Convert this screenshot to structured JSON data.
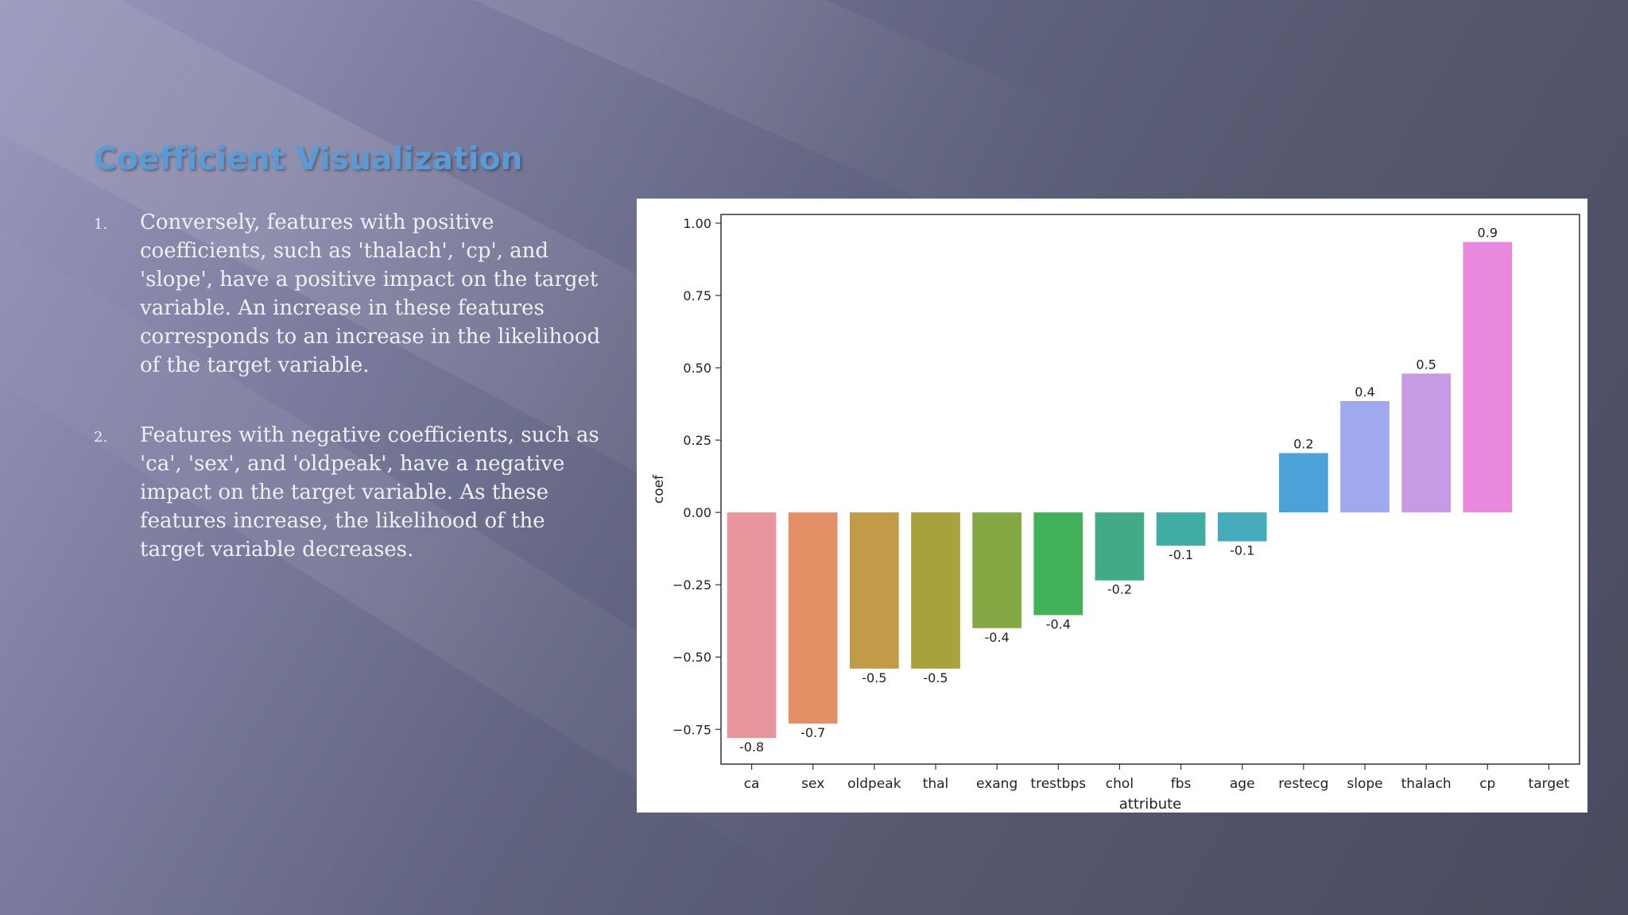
{
  "slide": {
    "title": "Coefficient Visualization",
    "points": [
      {
        "number": "1.",
        "text": "Conversely, features with positive coefficients, such as 'thalach', 'cp', and 'slope', have a positive impact on the target variable. An increase in these features corresponds to an increase in the likelihood of the target variable."
      },
      {
        "number": "2.",
        "text": "Features with negative coefficients, such as 'ca', 'sex', and 'oldpeak', have a negative impact on the target variable. As these features increase, the likelihood of the target variable decreases."
      }
    ]
  },
  "colors": {
    "title": "#5b9bd5",
    "body_text": "#eef0f6"
  },
  "chart_data": {
    "type": "bar",
    "title": "",
    "xlabel": "attribute",
    "ylabel": "coef",
    "categories": [
      "ca",
      "sex",
      "oldpeak",
      "thal",
      "exang",
      "trestbps",
      "chol",
      "fbs",
      "age",
      "restecg",
      "slope",
      "thalach",
      "cp",
      "target"
    ],
    "values": [
      -0.78,
      -0.73,
      -0.54,
      -0.54,
      -0.4,
      -0.355,
      -0.235,
      -0.115,
      -0.1,
      0.205,
      0.385,
      0.48,
      0.935,
      null
    ],
    "data_labels": [
      "-0.8",
      "-0.7",
      "-0.5",
      "-0.5",
      "-0.4",
      "-0.4",
      "-0.2",
      "-0.1",
      "-0.1",
      "0.2",
      "0.4",
      "0.5",
      "0.9",
      ""
    ],
    "bar_colors": [
      "#e8969e",
      "#e39066",
      "#c19b47",
      "#a7a23e",
      "#83a844",
      "#41b25a",
      "#43aa87",
      "#41aca4",
      "#46abbb",
      "#4aa2d8",
      "#a0a9ed",
      "#c79be4",
      "#e889dd",
      "#e889dd"
    ],
    "yticks": [
      -0.75,
      -0.5,
      -0.25,
      0.0,
      0.25,
      0.5,
      0.75,
      1.0
    ],
    "ytick_labels": [
      "−0.75",
      "−0.50",
      "−0.25",
      "0.00",
      "0.25",
      "0.50",
      "0.75",
      "1.00"
    ],
    "ylim": [
      -0.87,
      1.03
    ],
    "grid": false,
    "legend": "none"
  }
}
